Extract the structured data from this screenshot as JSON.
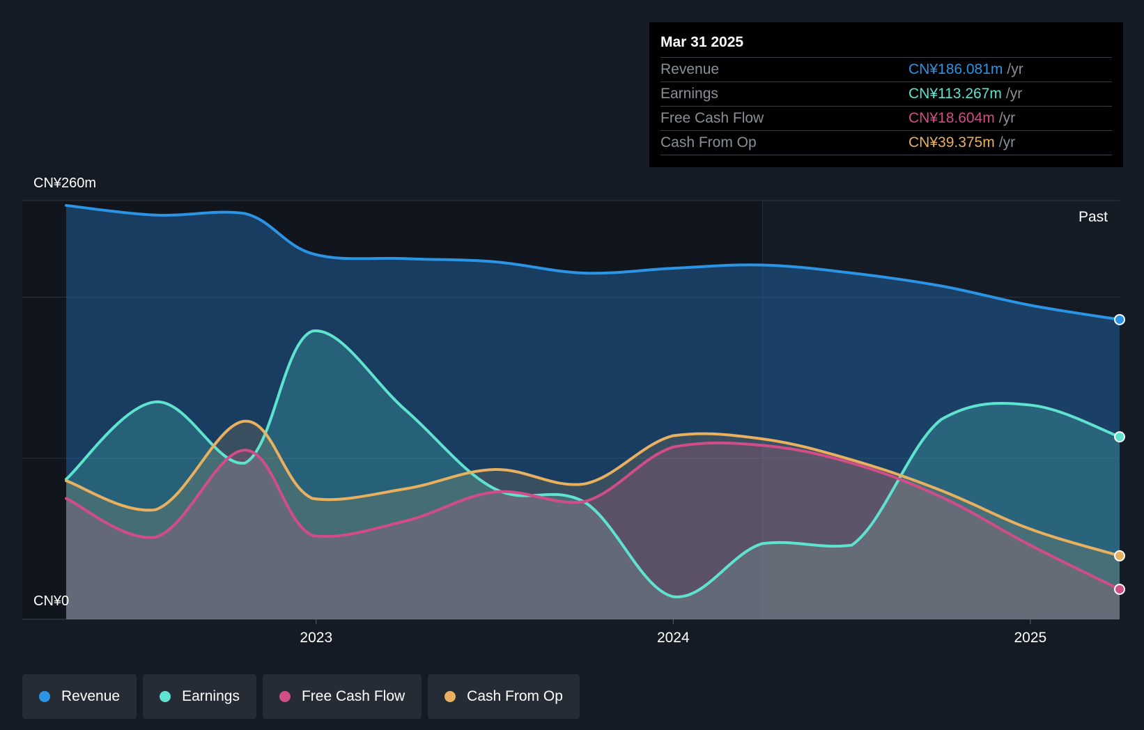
{
  "colors": {
    "revenue": "#2b94e4",
    "earnings": "#5fe3d0",
    "free_cash_flow": "#d14d87",
    "cash_from_op": "#e8b05f",
    "background": "#151b24"
  },
  "tooltip": {
    "date": "Mar 31 2025",
    "rows": [
      {
        "label": "Revenue",
        "value": "CN¥186.081m",
        "unit": "/yr"
      },
      {
        "label": "Earnings",
        "value": "CN¥113.267m",
        "unit": "/yr"
      },
      {
        "label": "Free Cash Flow",
        "value": "CN¥18.604m",
        "unit": "/yr"
      },
      {
        "label": "Cash From Op",
        "value": "CN¥39.375m",
        "unit": "/yr"
      }
    ]
  },
  "legend": [
    {
      "label": "Revenue",
      "icon": "revenue-dot-icon"
    },
    {
      "label": "Earnings",
      "icon": "earnings-dot-icon"
    },
    {
      "label": "Free Cash Flow",
      "icon": "free-cash-flow-dot-icon"
    },
    {
      "label": "Cash From Op",
      "icon": "cash-from-op-dot-icon"
    }
  ],
  "chart_data": {
    "type": "area",
    "title": "",
    "xlabel": "",
    "ylabel": "",
    "y_top_label": "CN¥260m",
    "y_bottom_label": "CN¥0",
    "ylim": [
      0,
      260
    ],
    "xlim": [
      2022.3,
      2025.25
    ],
    "x_ticks": [
      {
        "value": 2023.0,
        "label": "2023"
      },
      {
        "value": 2024.0,
        "label": "2024"
      },
      {
        "value": 2025.0,
        "label": "2025"
      }
    ],
    "gridlines": [
      0,
      100,
      200,
      260
    ],
    "past_label": "Past",
    "past_start": 2024.25,
    "grid": true,
    "legend_position": "bottom-left",
    "series": [
      {
        "name": "Revenue",
        "color_key": "revenue",
        "points": [
          [
            2022.3,
            257
          ],
          [
            2022.55,
            251
          ],
          [
            2022.8,
            252
          ],
          [
            2022.99,
            227
          ],
          [
            2023.25,
            224
          ],
          [
            2023.5,
            222
          ],
          [
            2023.75,
            215
          ],
          [
            2024.0,
            218
          ],
          [
            2024.25,
            220
          ],
          [
            2024.5,
            215
          ],
          [
            2024.75,
            207
          ],
          [
            2025.0,
            195
          ],
          [
            2025.25,
            186.1
          ]
        ]
      },
      {
        "name": "Earnings",
        "color_key": "earnings",
        "points": [
          [
            2022.3,
            87
          ],
          [
            2022.55,
            135
          ],
          [
            2022.8,
            97
          ],
          [
            2022.99,
            179
          ],
          [
            2023.25,
            130
          ],
          [
            2023.5,
            81
          ],
          [
            2023.75,
            73
          ],
          [
            2024.0,
            14
          ],
          [
            2024.25,
            47
          ],
          [
            2024.5,
            46
          ],
          [
            2024.75,
            124
          ],
          [
            2025.0,
            133
          ],
          [
            2025.25,
            113.3
          ]
        ]
      },
      {
        "name": "Free Cash Flow",
        "color_key": "free_cash_flow",
        "points": [
          [
            2022.3,
            75
          ],
          [
            2022.55,
            51
          ],
          [
            2022.8,
            105
          ],
          [
            2022.99,
            52
          ],
          [
            2023.25,
            61
          ],
          [
            2023.5,
            79
          ],
          [
            2023.75,
            73
          ],
          [
            2024.0,
            107
          ],
          [
            2024.25,
            108
          ],
          [
            2024.5,
            97
          ],
          [
            2024.75,
            76
          ],
          [
            2025.0,
            46
          ],
          [
            2025.25,
            18.6
          ]
        ]
      },
      {
        "name": "Cash From Op",
        "color_key": "cash_from_op",
        "points": [
          [
            2022.3,
            86
          ],
          [
            2022.55,
            68
          ],
          [
            2022.8,
            123
          ],
          [
            2022.99,
            75
          ],
          [
            2023.25,
            81
          ],
          [
            2023.5,
            93
          ],
          [
            2023.75,
            84
          ],
          [
            2024.0,
            114
          ],
          [
            2024.25,
            112
          ],
          [
            2024.5,
            99
          ],
          [
            2024.75,
            80
          ],
          [
            2025.0,
            56
          ],
          [
            2025.25,
            39.4
          ]
        ]
      }
    ]
  }
}
